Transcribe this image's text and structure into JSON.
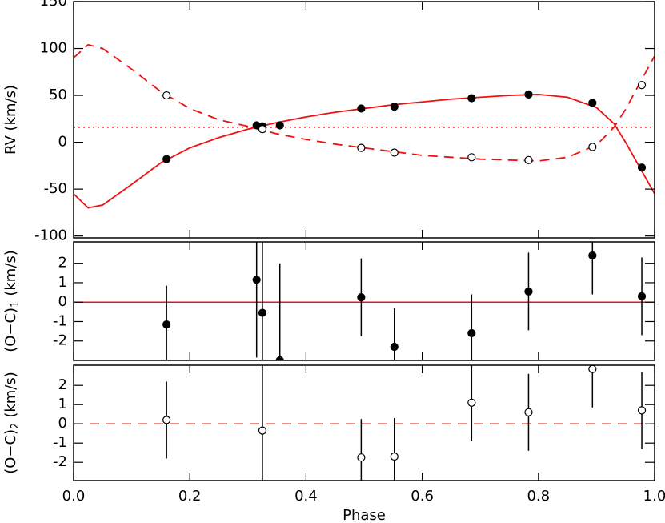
{
  "chart_data": [
    {
      "type": "line",
      "ylabel": "RV (km/s)",
      "xlim": [
        0,
        1
      ],
      "xticks": [
        0,
        0.2,
        0.4,
        0.6,
        0.8,
        1
      ],
      "ylim": [
        -102,
        150
      ],
      "yticks": [
        150,
        100,
        50,
        0,
        -50,
        -100
      ],
      "hline": {
        "value": 16,
        "style": "dotted",
        "color": "#ee1111"
      },
      "series": [
        {
          "style": "solid",
          "color": "#ee1111",
          "x": [
            0,
            0.025,
            0.05,
            0.1,
            0.15,
            0.2,
            0.25,
            0.3,
            0.35,
            0.4,
            0.45,
            0.5,
            0.55,
            0.6,
            0.65,
            0.7,
            0.75,
            0.8,
            0.85,
            0.9,
            0.93,
            0.95,
            0.97,
            1
          ],
          "values": [
            -55,
            -70,
            -67,
            -45,
            -22,
            -6,
            5,
            14,
            21,
            27,
            32,
            36,
            40,
            43,
            46,
            48,
            50,
            51,
            48,
            37,
            20,
            0,
            -22,
            -55
          ]
        },
        {
          "style": "dashed",
          "color": "#ee1111",
          "x": [
            0,
            0.025,
            0.05,
            0.1,
            0.15,
            0.2,
            0.25,
            0.3,
            0.35,
            0.4,
            0.45,
            0.5,
            0.55,
            0.6,
            0.65,
            0.7,
            0.75,
            0.8,
            0.85,
            0.9,
            0.93,
            0.95,
            0.97,
            1
          ],
          "values": [
            90,
            104,
            100,
            78,
            54,
            36,
            24,
            17,
            9,
            3,
            -2,
            -6,
            -10,
            -14,
            -16,
            -18,
            -19,
            -20,
            -16,
            -3,
            16,
            35,
            58,
            92
          ]
        },
        {
          "marker": "filled",
          "color": "#000000",
          "x": [
            0.16,
            0.315,
            0.325,
            0.355,
            0.495,
            0.552,
            0.685,
            0.783,
            0.893,
            0.978
          ],
          "values": [
            -18,
            18,
            17,
            18,
            36,
            38,
            47,
            51,
            42,
            -27
          ]
        },
        {
          "marker": "open",
          "color": "#000000",
          "x": [
            0.16,
            0.325,
            0.495,
            0.552,
            0.685,
            0.783,
            0.893,
            0.978
          ],
          "values": [
            50,
            14,
            -6,
            -11,
            -16,
            -19,
            -5,
            61
          ]
        }
      ]
    },
    {
      "type": "scatter",
      "ylabel": {
        "text": "(O−C)",
        "sub": "1",
        "unit": "(km/s)"
      },
      "xlim": [
        0,
        1
      ],
      "xticks": [
        0,
        0.2,
        0.4,
        0.6,
        0.8,
        1
      ],
      "ylim": [
        -3,
        3.1
      ],
      "yticks": [
        2,
        1,
        0,
        -1,
        -2
      ],
      "hline": {
        "value": 0,
        "style": "solid",
        "color": "#ee1111"
      },
      "series": [
        {
          "marker": "filled",
          "color": "#000000",
          "x": [
            0.16,
            0.315,
            0.325,
            0.355,
            0.495,
            0.552,
            0.685,
            0.783,
            0.893,
            0.978
          ],
          "values": [
            -1.15,
            1.15,
            -0.55,
            -3.0,
            0.25,
            -2.3,
            -1.6,
            0.55,
            2.4,
            0.3
          ],
          "errors": [
            2,
            4,
            4,
            5,
            2,
            2,
            2,
            2,
            2,
            2
          ]
        }
      ]
    },
    {
      "type": "scatter",
      "ylabel": {
        "text": "(O−C)",
        "sub": "2",
        "unit": "(km/s)"
      },
      "xlabel": "Phase",
      "xlim": [
        0,
        1
      ],
      "xticks": [
        {
          "value": 0,
          "label": "0.0"
        },
        0.2,
        0.4,
        0.6,
        0.8,
        {
          "value": 1,
          "label": "1.0"
        }
      ],
      "ylim": [
        -2.95,
        3.05
      ],
      "yticks": [
        2,
        1,
        0,
        -1,
        -2
      ],
      "hline": {
        "value": 0,
        "style": "dashed",
        "color": "#ee1111"
      },
      "series": [
        {
          "marker": "open",
          "color": "#000000",
          "x": [
            0.16,
            0.325,
            0.495,
            0.552,
            0.685,
            0.783,
            0.893,
            0.978
          ],
          "values": [
            0.2,
            -0.35,
            -1.75,
            -1.7,
            1.1,
            0.6,
            2.85,
            0.7
          ],
          "errors": [
            2,
            4,
            2,
            2,
            2,
            2,
            2,
            2
          ]
        }
      ]
    }
  ]
}
